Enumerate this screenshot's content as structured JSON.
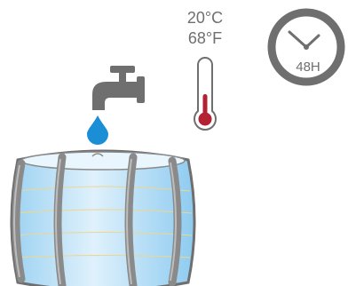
{
  "temperature": {
    "celsius": "20°C",
    "fahrenheit": "68°F"
  },
  "timer": {
    "label": "48H"
  },
  "icons": [
    "faucet-icon",
    "water-drop-icon",
    "thermometer-icon",
    "clock-icon",
    "barrel-icon"
  ],
  "colors": {
    "gray": "#6f6f6f",
    "water_blue": "#1a8fd6",
    "thermometer_red": "#b22233",
    "barrel_light": "#cfe9f9",
    "barrel_mid": "#9cd2f2",
    "hoop": "#8a8a8a"
  }
}
